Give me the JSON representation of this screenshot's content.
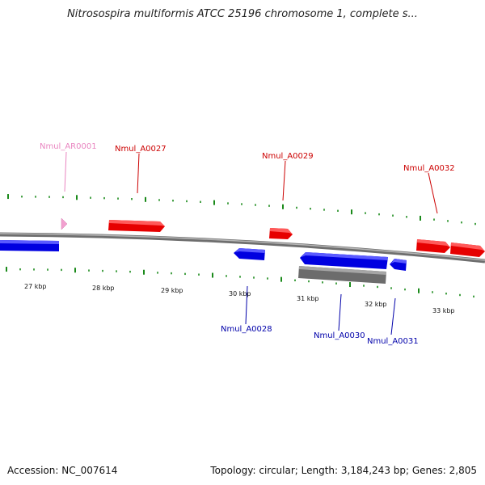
{
  "title": "Nitrosospira multiformis ATCC 25196 chromosome 1, complete s...",
  "footer": {
    "accession": "Accession: NC_007614",
    "summary": "Topology: circular; Length: 3,184,243 bp; Genes: 2,805"
  },
  "colors": {
    "forward_gene": "#ee0000",
    "reverse_gene": "#0000ee",
    "misc_feature": "#e985c0",
    "gray_feature": "#777777",
    "backbone": "#8a8a8a",
    "tick": "#1a8a1a",
    "forward_label": "#cc0000",
    "reverse_label": "#0000aa",
    "misc_label": "#e985c0"
  },
  "scale_labels": [
    "27 kbp",
    "28 kbp",
    "29 kbp",
    "30 kbp",
    "31 kbp",
    "32 kbp",
    "33 kbp"
  ],
  "gene_labels": [
    {
      "text": "Nmul_AR0001",
      "kind": "misc"
    },
    {
      "text": "Nmul_A0027",
      "kind": "forward"
    },
    {
      "text": "Nmul_A0029",
      "kind": "forward"
    },
    {
      "text": "Nmul_A0032",
      "kind": "forward"
    },
    {
      "text": "Nmul_A0028",
      "kind": "reverse"
    },
    {
      "text": "Nmul_A0030",
      "kind": "reverse"
    },
    {
      "text": "Nmul_A0031",
      "kind": "reverse"
    }
  ]
}
